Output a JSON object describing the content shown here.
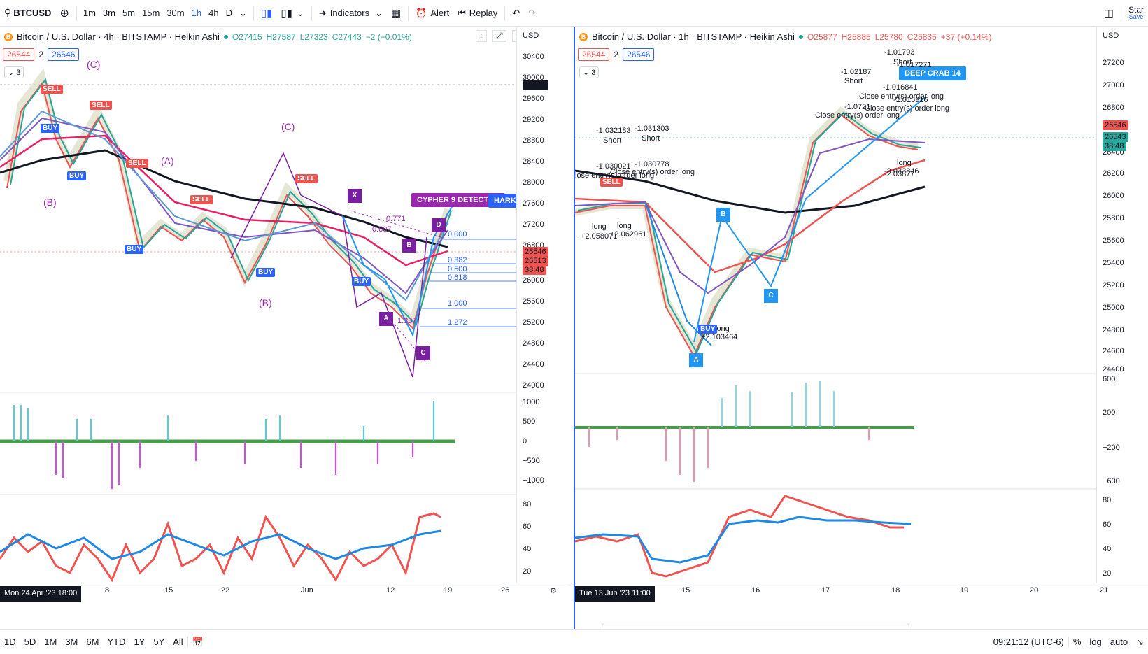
{
  "topbar": {
    "symbol": "BTCUSD",
    "timeframes": [
      "1m",
      "3m",
      "5m",
      "15m",
      "30m",
      "1h",
      "4h",
      "D"
    ],
    "active_timeframe": "1h",
    "indicators_label": "Indicators",
    "alert_label": "Alert",
    "replay_label": "Replay",
    "user_label": "Star",
    "save_label": "Save"
  },
  "left_chart": {
    "title": "Bitcoin / U.S. Dollar · 4h · BITSTAMP · Heikin Ashi",
    "ohlc": {
      "o": "O27415",
      "h": "H27587",
      "l": "L27323",
      "c": "C27443",
      "chg": "−2 (−0.01%)"
    },
    "bid": "26544",
    "spread": "2",
    "ask": "26546",
    "chip": "3",
    "currency": "USD",
    "price_ticks": [
      "30400",
      "30000",
      "29600",
      "29200",
      "28800",
      "28400",
      "28000",
      "27600",
      "27200",
      "26800",
      "26400",
      "26000",
      "25600",
      "25200",
      "24800",
      "24400",
      "24000"
    ],
    "crosshair_price": "29874",
    "tag_price": "26546",
    "tag_price2": "26513",
    "tag_time": "38:48",
    "osc_ticks": [
      "1000",
      "500",
      "0",
      "−500",
      "−1000"
    ],
    "rsi_ticks": [
      "80",
      "60",
      "40",
      "20"
    ],
    "date_tag": "Mon 24 Apr '23   18:00",
    "x_ticks": [
      "8",
      "15",
      "22",
      "Jun",
      "12",
      "19",
      "26"
    ],
    "wave_labels": [
      "(C)",
      "(B)",
      "(A)",
      "(B)",
      "(C)",
      "C",
      "B"
    ],
    "pattern_points": [
      "X",
      "A",
      "B",
      "C",
      "D"
    ],
    "fib_levels": [
      "0.000",
      "0.382",
      "0.500",
      "0.618",
      "1.000",
      "1.272"
    ],
    "fib_text": [
      "0.771",
      "0.607",
      "1.337"
    ],
    "banner": "CYPHER 9 DETECTED",
    "banner2": "HARK 9",
    "buy_label": "BUY",
    "sell_label": "SELL"
  },
  "right_chart": {
    "title": "Bitcoin / U.S. Dollar · 1h · BITSTAMP · Heikin Ashi",
    "ohlc": {
      "o": "O25877",
      "h": "H25885",
      "l": "L25780",
      "c": "C25835",
      "chg": "+37 (+0.14%)"
    },
    "bid": "26544",
    "spread": "2",
    "ask": "26546",
    "chip": "3",
    "currency": "USD",
    "price_ticks": [
      "27200",
      "27000",
      "26800",
      "26600",
      "26400",
      "26200",
      "26000",
      "25800",
      "25600",
      "25400",
      "25200",
      "25000",
      "24800",
      "24600",
      "24400"
    ],
    "tag_price": "26546",
    "tag_price2": "26543",
    "tag_time": "38:48",
    "osc_ticks": [
      "600",
      "200",
      "−200",
      "−600"
    ],
    "rsi_ticks": [
      "80",
      "60",
      "40",
      "20"
    ],
    "date_tag": "Tue 13 Jun '23   11:00",
    "x_ticks": [
      "15",
      "16",
      "17",
      "18",
      "19",
      "20",
      "21"
    ],
    "pattern_points": [
      "A",
      "B",
      "C"
    ],
    "banner": "DEEP CRAB 14",
    "annotations": [
      "-1.032183",
      "Short",
      "-1.031303",
      "Short",
      "-1.030021",
      "-1.030778",
      "lose entry(s) order long",
      "Close entry(s) order long",
      "long",
      "+2.058071",
      "long",
      "+2.062961",
      "-1.02187",
      "Short",
      "-1.01793",
      "Short",
      "-1.017271",
      "-1.016841",
      "Close entry(s) order long",
      "-1.015916",
      "Close entry(s) order long",
      "-1.0721",
      "Close entry(s) order long",
      "long",
      "-2.033846",
      "-2.03877",
      "long",
      "+2.103464",
      "BUY",
      "SELL"
    ]
  },
  "bottombar": {
    "ranges": [
      "1D",
      "5D",
      "1M",
      "3M",
      "6M",
      "YTD",
      "1Y",
      "5Y",
      "All"
    ],
    "clock": "09:21:12 (UTC-6)",
    "pct": "%",
    "log": "log",
    "auto": "auto"
  },
  "colors": {
    "accent": "#2962ff",
    "up": "#26a69a",
    "down": "#ef5350",
    "purple": "#9c27b0",
    "blue": "#2196f3"
  }
}
